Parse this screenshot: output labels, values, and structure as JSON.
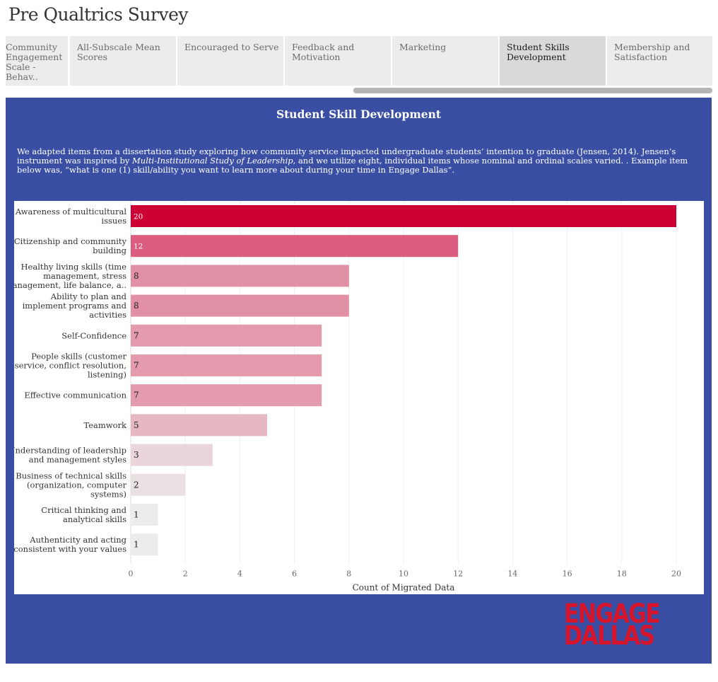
{
  "page_title": "Pre Qualtrics Survey",
  "tabs": [
    {
      "line1": "Community",
      "line2": "Engagement",
      "line3": "Scale - Behav.."
    },
    {
      "line1": "All-Subscale Mean",
      "line2": "Scores",
      "line3": ""
    },
    {
      "line1": "Encouraged to Serve",
      "line2": "",
      "line3": ""
    },
    {
      "line1": "Feedback and",
      "line2": "Motivation",
      "line3": ""
    },
    {
      "line1": "Marketing",
      "line2": "",
      "line3": ""
    },
    {
      "line1": "Student Skills",
      "line2": "Development",
      "line3": ""
    },
    {
      "line1": "Membership and",
      "line2": "Satisfaction",
      "line3": ""
    }
  ],
  "active_tab_index": 5,
  "panel": {
    "title": "Student Skill Development",
    "desc_part1": "We adapted items from a dissertation study exploring how community service impacted undergraduate students’ intention to graduate (Jensen, 2014). Jensen’s instrument was inspired by ",
    "desc_italic": "Multi-Institutional Study of Leadership",
    "desc_part2": ", and we utilize eight, individual items whose nominal and ordinal scales varied. . Example item below was, “what is one (1) skill/ability you want to learn more about during your time in Engage Dallas”."
  },
  "logo": {
    "line1": "ENGAGE",
    "line2": "DALLAS"
  },
  "colors": {
    "panel_bg": "#3a4fa4",
    "logo_red": "#d6152c",
    "max_bar": "#cc0033",
    "min_bar": "#ececec"
  },
  "chart_data": {
    "type": "bar",
    "orientation": "horizontal",
    "xlabel": "Count of Migrated Data",
    "xlim": [
      0,
      20
    ],
    "xticks": [
      0,
      2,
      4,
      6,
      8,
      10,
      12,
      14,
      16,
      18,
      20
    ],
    "grid": true,
    "categories": [
      [
        "Awareness of multicultural",
        "issues"
      ],
      [
        "Citizenship and community",
        "building"
      ],
      [
        "Healthy living skills (time",
        "management, stress",
        "management, life balance, a.."
      ],
      [
        "Ability to plan and",
        "implement programs and",
        "activities"
      ],
      [
        "Self-Confidence"
      ],
      [
        "People skills (customer",
        "service, conflict resolution,",
        "listening)"
      ],
      [
        "Effective communication"
      ],
      [
        "Teamwork"
      ],
      [
        "Understanding of leadership",
        "and management styles"
      ],
      [
        "Business of technical skills",
        "(organization, computer",
        "systems)"
      ],
      [
        "Critical thinking and",
        "analytical skills"
      ],
      [
        "Authenticity and acting",
        "consistent with your values"
      ]
    ],
    "values": [
      20,
      12,
      8,
      8,
      7,
      7,
      7,
      5,
      3,
      2,
      1,
      1
    ],
    "bar_colors": [
      "#cc0033",
      "#db5e80",
      "#e290a5",
      "#e290a5",
      "#e39bad",
      "#e39bad",
      "#e39bad",
      "#e6b8c3",
      "#ead5da",
      "#eadfe1",
      "#ececec",
      "#ececec"
    ],
    "label_colors": [
      "#ffffff",
      "#ffffff",
      "#222222",
      "#222222",
      "#222222",
      "#222222",
      "#222222",
      "#222222",
      "#222222",
      "#222222",
      "#222222",
      "#222222"
    ]
  }
}
